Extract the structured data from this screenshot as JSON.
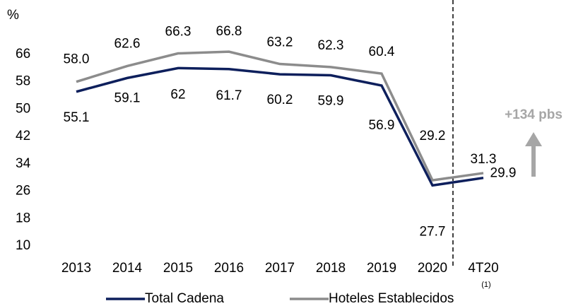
{
  "chart_data": {
    "type": "line",
    "ylabel": "%",
    "categories": [
      "2013",
      "2014",
      "2015",
      "2016",
      "2017",
      "2018",
      "2019",
      "2020",
      "4T20"
    ],
    "series": [
      {
        "name": "Total Cadena",
        "color": "#0d1f5c",
        "values": [
          55.1,
          59.1,
          62,
          61.7,
          60.2,
          59.9,
          56.9,
          27.7,
          29.9
        ]
      },
      {
        "name": "Hoteles Establecidos",
        "color": "#8c8c8c",
        "values": [
          58.0,
          62.6,
          66.3,
          66.8,
          63.2,
          62.3,
          60.4,
          29.2,
          31.3
        ],
        "value_labels": [
          "58.0",
          "62.6",
          "66.3",
          "66.8",
          "63.2",
          "62.3",
          "60.4",
          "29.2",
          "31.3"
        ]
      }
    ],
    "legend_note": "(1)",
    "annotation": "+134 pbs",
    "ylim": [
      10,
      70
    ],
    "yticks": [
      10,
      18,
      26,
      34,
      42,
      50,
      58,
      66
    ],
    "grid": false
  }
}
